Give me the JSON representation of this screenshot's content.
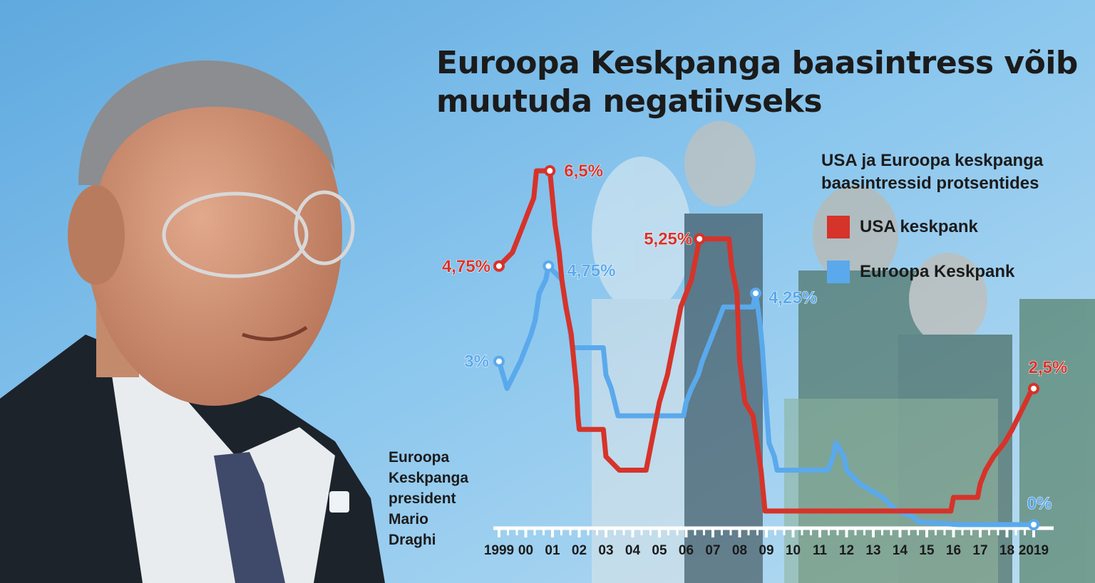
{
  "title": "Euroopa Keskpanga baasintress võib muutuda negatiivseks",
  "subtitle": "USA ja Euroopa keskpanga baasintressid protsentides",
  "caption": [
    "Euroopa",
    "Keskpanga",
    "president",
    "Mario",
    "Draghi"
  ],
  "colors": {
    "usa": "#d6332a",
    "ecb": "#5aa9ec",
    "axis": "#ffffff",
    "tick_text": "#1b1b1b"
  },
  "legend": [
    {
      "label": "USA keskpank",
      "color": "#d6332a"
    },
    {
      "label": "Euroopa Keskpank",
      "color": "#5aa9ec"
    }
  ],
  "chart_data": {
    "type": "line",
    "title": "USA ja Euroopa keskpanga baasintressid protsentides",
    "xlabel": "",
    "ylabel": "",
    "xlim": [
      1999,
      2019
    ],
    "ylim": [
      0,
      6.5
    ],
    "x_tick_labels": [
      "1999",
      "00",
      "01",
      "02",
      "03",
      "04",
      "05",
      "06",
      "07",
      "08",
      "09",
      "10",
      "11",
      "12",
      "13",
      "14",
      "15",
      "16",
      "17",
      "18",
      "2019"
    ],
    "grid": false,
    "legend_position": "top-right",
    "series": [
      {
        "name": "USA keskpank",
        "color": "#d6332a",
        "points": [
          [
            1999.0,
            4.75
          ],
          [
            1999.5,
            5.0
          ],
          [
            1999.7,
            5.25
          ],
          [
            1999.9,
            5.5
          ],
          [
            2000.1,
            5.75
          ],
          [
            2000.3,
            6.0
          ],
          [
            2000.4,
            6.5
          ],
          [
            2000.9,
            6.5
          ],
          [
            2001.0,
            6.0
          ],
          [
            2001.1,
            5.5
          ],
          [
            2001.25,
            5.0
          ],
          [
            2001.35,
            4.5
          ],
          [
            2001.5,
            4.0
          ],
          [
            2001.7,
            3.5
          ],
          [
            2001.8,
            3.0
          ],
          [
            2001.9,
            2.5
          ],
          [
            2001.95,
            2.0
          ],
          [
            2002.0,
            1.75
          ],
          [
            2002.9,
            1.75
          ],
          [
            2003.0,
            1.25
          ],
          [
            2003.5,
            1.0
          ],
          [
            2004.5,
            1.0
          ],
          [
            2004.6,
            1.25
          ],
          [
            2004.8,
            1.75
          ],
          [
            2005.0,
            2.25
          ],
          [
            2005.3,
            2.75
          ],
          [
            2005.6,
            3.5
          ],
          [
            2005.8,
            4.0
          ],
          [
            2006.2,
            4.5
          ],
          [
            2006.5,
            5.25
          ],
          [
            2007.6,
            5.25
          ],
          [
            2007.7,
            4.75
          ],
          [
            2007.9,
            4.25
          ],
          [
            2008.0,
            3.0
          ],
          [
            2008.2,
            2.25
          ],
          [
            2008.5,
            2.0
          ],
          [
            2008.8,
            1.0
          ],
          [
            2008.95,
            0.25
          ],
          [
            2015.9,
            0.25
          ],
          [
            2016.0,
            0.5
          ],
          [
            2016.9,
            0.5
          ],
          [
            2017.0,
            0.75
          ],
          [
            2017.2,
            1.0
          ],
          [
            2017.5,
            1.25
          ],
          [
            2017.9,
            1.5
          ],
          [
            2018.2,
            1.75
          ],
          [
            2018.45,
            2.0
          ],
          [
            2018.7,
            2.25
          ],
          [
            2018.95,
            2.5
          ],
          [
            2019.0,
            2.5
          ]
        ]
      },
      {
        "name": "Euroopa Keskpank",
        "color": "#5aa9ec",
        "points": [
          [
            1999.0,
            3.0
          ],
          [
            1999.3,
            2.5
          ],
          [
            1999.8,
            3.0
          ],
          [
            2000.0,
            3.25
          ],
          [
            2000.2,
            3.5
          ],
          [
            2000.35,
            3.75
          ],
          [
            2000.5,
            4.25
          ],
          [
            2000.75,
            4.5
          ],
          [
            2000.85,
            4.75
          ],
          [
            2001.35,
            4.5
          ],
          [
            2001.6,
            3.75
          ],
          [
            2001.75,
            3.25
          ],
          [
            2002.9,
            3.25
          ],
          [
            2003.0,
            2.75
          ],
          [
            2003.2,
            2.5
          ],
          [
            2003.45,
            2.0
          ],
          [
            2005.9,
            2.0
          ],
          [
            2006.0,
            2.25
          ],
          [
            2006.2,
            2.5
          ],
          [
            2006.45,
            2.75
          ],
          [
            2006.6,
            3.0
          ],
          [
            2006.8,
            3.25
          ],
          [
            2007.0,
            3.5
          ],
          [
            2007.4,
            4.0
          ],
          [
            2008.5,
            4.0
          ],
          [
            2008.6,
            4.25
          ],
          [
            2008.75,
            3.75
          ],
          [
            2008.85,
            3.25
          ],
          [
            2008.95,
            2.5
          ],
          [
            2009.1,
            1.5
          ],
          [
            2009.3,
            1.25
          ],
          [
            2009.4,
            1.0
          ],
          [
            2011.3,
            1.0
          ],
          [
            2011.5,
            1.25
          ],
          [
            2011.6,
            1.5
          ],
          [
            2011.9,
            1.25
          ],
          [
            2012.0,
            1.0
          ],
          [
            2012.5,
            0.75
          ],
          [
            2013.35,
            0.5
          ],
          [
            2013.9,
            0.25
          ],
          [
            2014.45,
            0.15
          ],
          [
            2014.7,
            0.05
          ],
          [
            2016.2,
            0.0
          ],
          [
            2019.0,
            0.0
          ]
        ]
      }
    ],
    "annotations": [
      {
        "series": "USA keskpank",
        "x": 1999.0,
        "y": 4.75,
        "text": "4,75%"
      },
      {
        "series": "USA keskpank",
        "x": 2000.9,
        "y": 6.5,
        "text": "6,5%"
      },
      {
        "series": "USA keskpank",
        "x": 2006.5,
        "y": 5.25,
        "text": "5,25%"
      },
      {
        "series": "USA keskpank",
        "x": 2019.0,
        "y": 2.5,
        "text": "2,5%"
      },
      {
        "series": "Euroopa Keskpank",
        "x": 1999.0,
        "y": 3.0,
        "text": "3%"
      },
      {
        "series": "Euroopa Keskpank",
        "x": 2000.85,
        "y": 4.75,
        "text": "4,75%"
      },
      {
        "series": "Euroopa Keskpank",
        "x": 2008.6,
        "y": 4.25,
        "text": "4,25%"
      },
      {
        "series": "Euroopa Keskpank",
        "x": 2019.0,
        "y": 0.0,
        "text": "0%"
      }
    ]
  }
}
